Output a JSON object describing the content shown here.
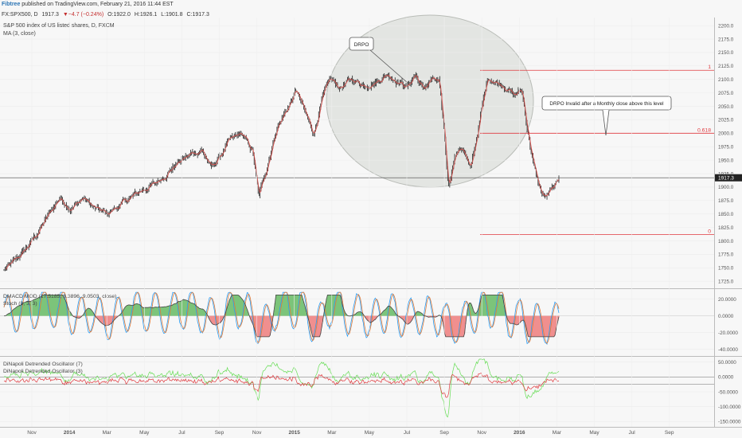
{
  "header": {
    "author": "Fibtree",
    "published": " published on TradingView.com, February 21, 2016 11:44 EST",
    "quote_symbol": "FX:SPX500, D",
    "quote_last": "1917.3",
    "quote_change": "▼−4.7 (−0.24%)",
    "quote_o": "O:1922.0",
    "quote_h": "H:1926.1",
    "quote_l": "L:1901.8",
    "quote_c": "C:1917.3"
  },
  "main_pane": {
    "title": "S&P 500 index of US listed shares, D, FXCM",
    "ma_label": "MA (3, close)"
  },
  "colors": {
    "candle": "#222222",
    "ma": "#d9534f",
    "fib_line": "#e0393e",
    "ellipse_fill": "#d6d9d4",
    "osc_fast": "#2a9df4",
    "osc_slow": "#e07b39",
    "hist_pos": "#7cc47a",
    "hist_neg": "#f08f8f",
    "dpo_fast": "#66dd55",
    "dpo_slow": "#e0393e"
  },
  "annotations": {
    "drpo": "DRPO",
    "invalid_note": "DRPO Invalid after a Monthly close above this level"
  },
  "chart_data": [
    {
      "type": "candlestick",
      "title": "S&P 500 index of US listed shares, D, FXCM",
      "y_axis_ticks": [
        1725,
        1750,
        1775,
        1800,
        1825,
        1850,
        1875,
        1900,
        1925,
        1950,
        1975,
        2000,
        2025,
        2050,
        2075,
        2100,
        2125,
        2150,
        2175,
        2200
      ],
      "y_tick_labels": [
        "1725.0",
        "1750.0",
        "1775.0",
        "1800.0",
        "1825.0",
        "1850.0",
        "1875.0",
        "1900.0",
        "1925.0",
        "1950.0",
        "1975.0",
        "2000.0",
        "2025.0",
        "2050.0",
        "2075.0",
        "2100.0",
        "2125.0",
        "2150.0",
        "2175.0",
        "2200.0"
      ],
      "ylim": [
        1712,
        2215
      ],
      "last_price": 1917.3,
      "last_price_label": "1917.3",
      "x_axis_labels": [
        "Nov",
        "2014",
        "Mar",
        "May",
        "Jul",
        "Sep",
        "Nov",
        "2015",
        "Mar",
        "May",
        "Jul",
        "Sep",
        "Nov",
        "2016",
        "Mar",
        "May",
        "Jul",
        "Sep"
      ],
      "close_path": [
        [
          0,
          1745
        ],
        [
          10,
          1758
        ],
        [
          25,
          1780
        ],
        [
          40,
          1810
        ],
        [
          55,
          1845
        ],
        [
          70,
          1880
        ],
        [
          85,
          1860
        ],
        [
          100,
          1880
        ],
        [
          115,
          1860
        ],
        [
          130,
          1850
        ],
        [
          145,
          1865
        ],
        [
          160,
          1880
        ],
        [
          175,
          1895
        ],
        [
          190,
          1905
        ],
        [
          205,
          1925
        ],
        [
          220,
          1945
        ],
        [
          235,
          1960
        ],
        [
          250,
          1970
        ],
        [
          262,
          1935
        ],
        [
          272,
          1955
        ],
        [
          285,
          1985
        ],
        [
          300,
          2000
        ],
        [
          315,
          1965
        ],
        [
          322,
          1880
        ],
        [
          332,
          1935
        ],
        [
          345,
          2010
        ],
        [
          360,
          2050
        ],
        [
          370,
          2080
        ],
        [
          380,
          2040
        ],
        [
          392,
          2000
        ],
        [
          402,
          2060
        ],
        [
          412,
          2100
        ],
        [
          425,
          2085
        ],
        [
          440,
          2100
        ],
        [
          455,
          2090
        ],
        [
          470,
          2095
        ],
        [
          485,
          2110
        ],
        [
          500,
          2095
        ],
        [
          510,
          2085
        ],
        [
          520,
          2110
        ],
        [
          530,
          2080
        ],
        [
          540,
          2100
        ],
        [
          550,
          2095
        ],
        [
          557,
          2000
        ],
        [
          562,
          1900
        ],
        [
          570,
          1960
        ],
        [
          580,
          1975
        ],
        [
          590,
          1930
        ],
        [
          600,
          2010
        ],
        [
          612,
          2105
        ],
        [
          622,
          2095
        ],
        [
          632,
          2090
        ],
        [
          645,
          2070
        ],
        [
          655,
          2080
        ],
        [
          662,
          2010
        ],
        [
          670,
          1940
        ],
        [
          678,
          1895
        ],
        [
          684,
          1880
        ],
        [
          690,
          1890
        ],
        [
          697,
          1900
        ],
        [
          702,
          1918
        ]
      ],
      "moving_average": {
        "name": "MA (3, close)"
      },
      "fib_levels": [
        {
          "label": "1",
          "value": 2117
        },
        {
          "label": "0.618",
          "value": 2000
        },
        {
          "label": "0",
          "value": 1812
        }
      ]
    },
    {
      "type": "line",
      "series": [
        {
          "name": "DMACD MOD (17.5185, 8.3896, 9.0503, close)"
        },
        {
          "name": "Stoch (8, 3, 3)"
        }
      ],
      "y_axis_ticks": [
        20,
        0,
        -20,
        -40
      ],
      "y_tick_labels": [
        "20.0000",
        "0.0000",
        "-20.0000",
        "-40.0000"
      ],
      "ylim": [
        -48,
        32
      ]
    },
    {
      "type": "line",
      "series": [
        {
          "name": "DiNapoli Detrended Oscillator (7)"
        },
        {
          "name": "DiNapoli Detrended Oscillator (3)"
        }
      ],
      "y_axis_ticks": [
        50,
        0,
        -50,
        -100,
        -150
      ],
      "y_tick_labels": [
        "50.0000",
        "0.0000",
        "-50.0000",
        "-100.0000",
        "-150.0000"
      ],
      "ylim": [
        -168,
        68
      ],
      "reference_levels": [
        0,
        -25
      ]
    }
  ]
}
